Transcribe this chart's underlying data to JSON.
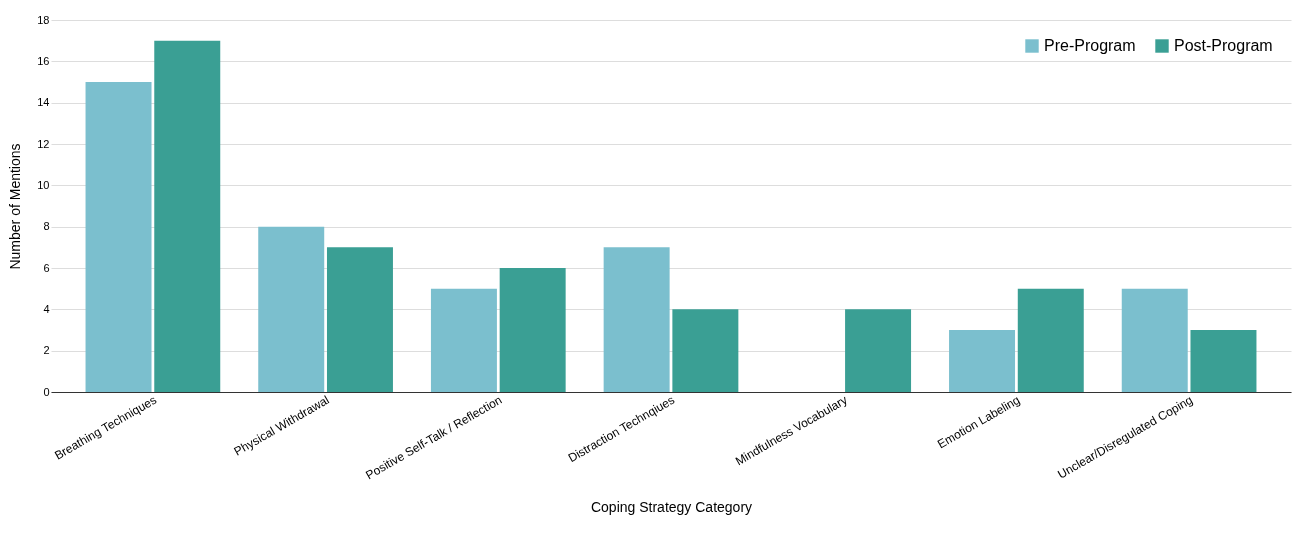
{
  "chart_data": {
    "type": "bar",
    "xlabel": "Coping Strategy Category",
    "ylabel": "Number of Mentions",
    "categories": [
      "Breathing Techniques",
      "Physical Withdrawal",
      "Positive Self-Talk / Reflection",
      "Distraction Technqiues",
      "Mindfulness Vocabulary",
      "Emotion Labeling",
      "Unclear/Disregulated Coping"
    ],
    "series": [
      {
        "name": "Pre-Program",
        "color": "#7bbfce",
        "values": [
          15,
          8,
          5,
          7,
          0,
          3,
          5
        ]
      },
      {
        "name": "Post-Program",
        "color": "#3a9f94",
        "values": [
          17,
          7,
          6,
          4,
          4,
          5,
          3
        ]
      }
    ],
    "ylim": [
      0,
      18
    ],
    "yticks": [
      0,
      2,
      4,
      6,
      8,
      10,
      12,
      14,
      16,
      18
    ],
    "grid": "y",
    "legend": "top right"
  }
}
